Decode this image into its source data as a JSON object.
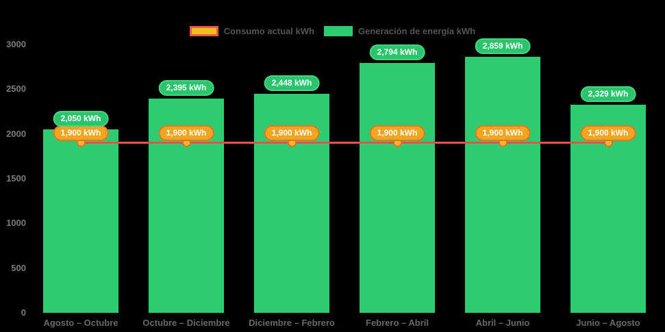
{
  "legend": {
    "items": [
      {
        "label": "Consumo actual kWh"
      },
      {
        "label": "Generación de energía kWh"
      }
    ]
  },
  "colors": {
    "background": "#000000",
    "bar": "#2ecc71",
    "bar_badge_fill": "#2bc46c",
    "bar_badge_border": "#45d685",
    "line": "#e8504e",
    "point_fill": "#f2b929",
    "point_border": "#ee6c2f",
    "line_badge_fill": "#f2a51f",
    "line_badge_border": "#ee7424",
    "legend_consumo_swatch_fill": "#f0c020",
    "legend_consumo_swatch_border": "#e85a4a",
    "legend_generacion_swatch_fill": "#2ecc71",
    "axis_text": "#7b7b7b",
    "category_text": "#696969",
    "legend_text": "#545454"
  },
  "chart_data": {
    "type": "bar",
    "title": "",
    "categories": [
      "Agosto – Octubre",
      "Octubre – Diciembre",
      "Diciembre – Febrero",
      "Febrero – Abril",
      "Abril – Junio",
      "Junio – Agosto"
    ],
    "series": [
      {
        "name": "Generación de energía kWh",
        "type": "bar",
        "color": "#2ecc71",
        "values": [
          2050,
          2395,
          2448,
          2794,
          2859,
          2329
        ],
        "labels": [
          "2,050 kWh",
          "2,395 kWh",
          "2,448 kWh",
          "2,794 kWh",
          "2,859 kWh",
          "2,329 kWh"
        ]
      },
      {
        "name": "Consumo actual kWh",
        "type": "line",
        "color": "#e8504e",
        "values": [
          1900,
          1900,
          1900,
          1900,
          1900,
          1900
        ],
        "labels": [
          "1,900 kWh",
          "1,900 kWh",
          "1,900 kWh",
          "1,900 kWh",
          "1,900 kWh",
          "1,900 kWh"
        ]
      }
    ],
    "ylim": [
      0,
      3000
    ],
    "yticks": [
      0,
      500,
      1000,
      1500,
      2000,
      2500,
      3000
    ],
    "xlabel": "",
    "ylabel": "",
    "grid": false,
    "legend_position": "top"
  }
}
